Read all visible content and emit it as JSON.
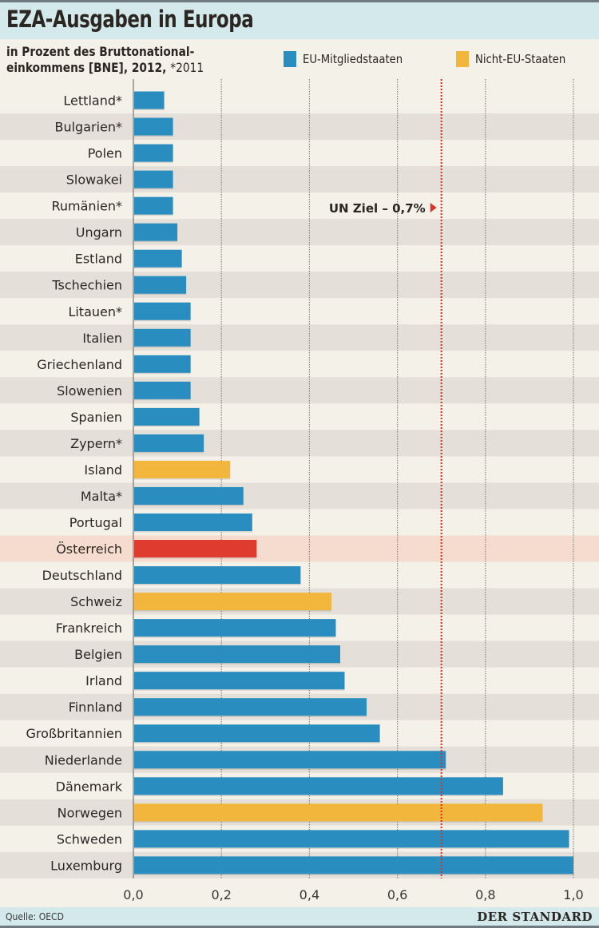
{
  "header": {
    "title": "EZA-Ausgaben in Europa",
    "subtitle_line1": "in Prozent des Bruttonational-",
    "subtitle_line2": "einkommens [BNE], 2012,",
    "subtitle_note": "*2011"
  },
  "legend": [
    {
      "label": "EU-Mitgliedstaaten",
      "color": "#2a8dbf"
    },
    {
      "label": "Nicht-EU-Staaten",
      "color": "#f2b63c"
    }
  ],
  "footer": {
    "source": "Quelle: OECD",
    "brand": "DER STANDARD"
  },
  "colors": {
    "eu": "#2a8dbf",
    "non_eu": "#f2b63c",
    "highlight": "#df3b2f",
    "highlight_band": "#f6dccf",
    "target_line": "#d8362b"
  },
  "chart_data": {
    "type": "bar",
    "orientation": "horizontal",
    "title": "EZA-Ausgaben in Europa",
    "subtitle": "in Prozent des Bruttonationaleinkommens [BNE], 2012, *2011",
    "xlabel": "",
    "ylabel": "",
    "xlim": [
      0,
      1.0
    ],
    "x_ticks": [
      0,
      0.2,
      0.4,
      0.6,
      0.8,
      1.0
    ],
    "x_tick_labels": [
      "0,0",
      "0,2",
      "0,4",
      "0,6",
      "0,8",
      "1,0"
    ],
    "grid": true,
    "legend_position": "top-right",
    "target": {
      "label": "UN Ziel – 0,7%",
      "value": 0.7
    },
    "categories": [
      "Lettland*",
      "Bulgarien*",
      "Polen",
      "Slowakei",
      "Rumänien*",
      "Ungarn",
      "Estland",
      "Tschechien",
      "Litauen*",
      "Italien",
      "Griechenland",
      "Slowenien",
      "Spanien",
      "Zypern*",
      "Island",
      "Malta*",
      "Portugal",
      "Österreich",
      "Deutschland",
      "Schweiz",
      "Frankreich",
      "Belgien",
      "Irland",
      "Finnland",
      "Großbritannien",
      "Niederlande",
      "Dänemark",
      "Norwegen",
      "Schweden",
      "Luxemburg"
    ],
    "values": [
      0.07,
      0.09,
      0.09,
      0.09,
      0.09,
      0.1,
      0.11,
      0.12,
      0.13,
      0.13,
      0.13,
      0.13,
      0.15,
      0.16,
      0.22,
      0.25,
      0.27,
      0.28,
      0.38,
      0.45,
      0.46,
      0.47,
      0.48,
      0.53,
      0.56,
      0.71,
      0.84,
      0.93,
      0.99,
      1.0
    ],
    "groups": [
      "EU",
      "EU",
      "EU",
      "EU",
      "EU",
      "EU",
      "EU",
      "EU",
      "EU",
      "EU",
      "EU",
      "EU",
      "EU",
      "EU",
      "Nicht-EU",
      "EU",
      "EU",
      "Highlight",
      "EU",
      "Nicht-EU",
      "EU",
      "EU",
      "EU",
      "EU",
      "EU",
      "EU",
      "EU",
      "Nicht-EU",
      "EU",
      "EU"
    ],
    "series": [
      {
        "name": "EU-Mitgliedstaaten",
        "color": "#2a8dbf"
      },
      {
        "name": "Nicht-EU-Staaten",
        "color": "#f2b63c"
      },
      {
        "name": "Österreich (hervorgehoben)",
        "color": "#df3b2f"
      }
    ]
  }
}
